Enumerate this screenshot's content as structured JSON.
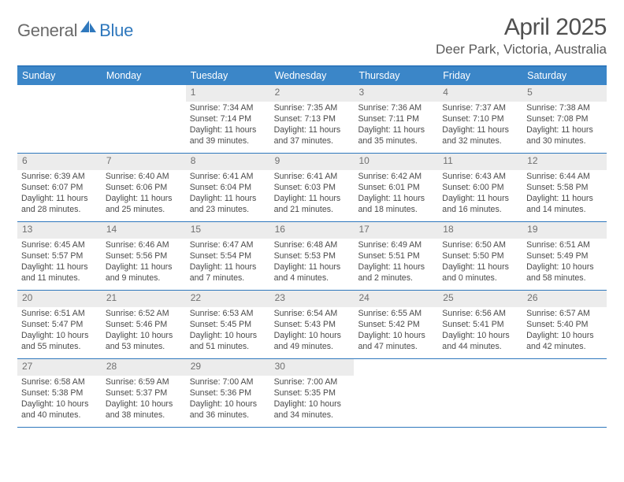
{
  "logo": {
    "word1": "General",
    "word2": "Blue"
  },
  "title": "April 2025",
  "location": "Deer Park, Victoria, Australia",
  "colors": {
    "brand_blue": "#2f78bd",
    "header_fill": "#3b86c8",
    "daynum_bg": "#ececec",
    "text": "#4a4a4a",
    "title_text": "#505050"
  },
  "day_headers": [
    "Sunday",
    "Monday",
    "Tuesday",
    "Wednesday",
    "Thursday",
    "Friday",
    "Saturday"
  ],
  "weeks": [
    [
      null,
      null,
      {
        "n": "1",
        "sr": "7:34 AM",
        "ss": "7:14 PM",
        "dl": "11 hours and 39 minutes."
      },
      {
        "n": "2",
        "sr": "7:35 AM",
        "ss": "7:13 PM",
        "dl": "11 hours and 37 minutes."
      },
      {
        "n": "3",
        "sr": "7:36 AM",
        "ss": "7:11 PM",
        "dl": "11 hours and 35 minutes."
      },
      {
        "n": "4",
        "sr": "7:37 AM",
        "ss": "7:10 PM",
        "dl": "11 hours and 32 minutes."
      },
      {
        "n": "5",
        "sr": "7:38 AM",
        "ss": "7:08 PM",
        "dl": "11 hours and 30 minutes."
      }
    ],
    [
      {
        "n": "6",
        "sr": "6:39 AM",
        "ss": "6:07 PM",
        "dl": "11 hours and 28 minutes."
      },
      {
        "n": "7",
        "sr": "6:40 AM",
        "ss": "6:06 PM",
        "dl": "11 hours and 25 minutes."
      },
      {
        "n": "8",
        "sr": "6:41 AM",
        "ss": "6:04 PM",
        "dl": "11 hours and 23 minutes."
      },
      {
        "n": "9",
        "sr": "6:41 AM",
        "ss": "6:03 PM",
        "dl": "11 hours and 21 minutes."
      },
      {
        "n": "10",
        "sr": "6:42 AM",
        "ss": "6:01 PM",
        "dl": "11 hours and 18 minutes."
      },
      {
        "n": "11",
        "sr": "6:43 AM",
        "ss": "6:00 PM",
        "dl": "11 hours and 16 minutes."
      },
      {
        "n": "12",
        "sr": "6:44 AM",
        "ss": "5:58 PM",
        "dl": "11 hours and 14 minutes."
      }
    ],
    [
      {
        "n": "13",
        "sr": "6:45 AM",
        "ss": "5:57 PM",
        "dl": "11 hours and 11 minutes."
      },
      {
        "n": "14",
        "sr": "6:46 AM",
        "ss": "5:56 PM",
        "dl": "11 hours and 9 minutes."
      },
      {
        "n": "15",
        "sr": "6:47 AM",
        "ss": "5:54 PM",
        "dl": "11 hours and 7 minutes."
      },
      {
        "n": "16",
        "sr": "6:48 AM",
        "ss": "5:53 PM",
        "dl": "11 hours and 4 minutes."
      },
      {
        "n": "17",
        "sr": "6:49 AM",
        "ss": "5:51 PM",
        "dl": "11 hours and 2 minutes."
      },
      {
        "n": "18",
        "sr": "6:50 AM",
        "ss": "5:50 PM",
        "dl": "11 hours and 0 minutes."
      },
      {
        "n": "19",
        "sr": "6:51 AM",
        "ss": "5:49 PM",
        "dl": "10 hours and 58 minutes."
      }
    ],
    [
      {
        "n": "20",
        "sr": "6:51 AM",
        "ss": "5:47 PM",
        "dl": "10 hours and 55 minutes."
      },
      {
        "n": "21",
        "sr": "6:52 AM",
        "ss": "5:46 PM",
        "dl": "10 hours and 53 minutes."
      },
      {
        "n": "22",
        "sr": "6:53 AM",
        "ss": "5:45 PM",
        "dl": "10 hours and 51 minutes."
      },
      {
        "n": "23",
        "sr": "6:54 AM",
        "ss": "5:43 PM",
        "dl": "10 hours and 49 minutes."
      },
      {
        "n": "24",
        "sr": "6:55 AM",
        "ss": "5:42 PM",
        "dl": "10 hours and 47 minutes."
      },
      {
        "n": "25",
        "sr": "6:56 AM",
        "ss": "5:41 PM",
        "dl": "10 hours and 44 minutes."
      },
      {
        "n": "26",
        "sr": "6:57 AM",
        "ss": "5:40 PM",
        "dl": "10 hours and 42 minutes."
      }
    ],
    [
      {
        "n": "27",
        "sr": "6:58 AM",
        "ss": "5:38 PM",
        "dl": "10 hours and 40 minutes."
      },
      {
        "n": "28",
        "sr": "6:59 AM",
        "ss": "5:37 PM",
        "dl": "10 hours and 38 minutes."
      },
      {
        "n": "29",
        "sr": "7:00 AM",
        "ss": "5:36 PM",
        "dl": "10 hours and 36 minutes."
      },
      {
        "n": "30",
        "sr": "7:00 AM",
        "ss": "5:35 PM",
        "dl": "10 hours and 34 minutes."
      },
      null,
      null,
      null
    ]
  ],
  "labels": {
    "sunrise": "Sunrise: ",
    "sunset": "Sunset: ",
    "daylight": "Daylight: "
  }
}
